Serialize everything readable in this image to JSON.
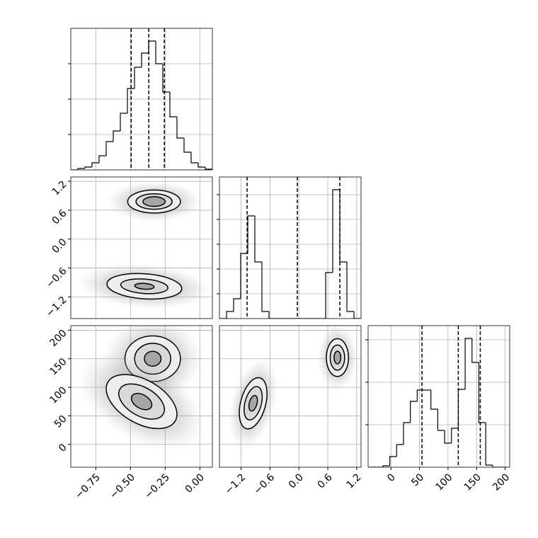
{
  "chart_data": {
    "type": "corner",
    "grid": true,
    "params": [
      {
        "lim": [
          -0.93,
          0.09
        ],
        "ticks": [
          {
            "value": -0.75,
            "label": "−0.75"
          },
          {
            "value": -0.5,
            "label": "−0.50"
          },
          {
            "value": -0.25,
            "label": "−0.25"
          },
          {
            "value": 0,
            "label": "0.00"
          }
        ],
        "bins": [
          -0.93,
          -0.879,
          -0.828,
          -0.777,
          -0.726,
          -0.675,
          -0.624,
          -0.573,
          -0.522,
          -0.471,
          -0.42,
          -0.369,
          -0.318,
          -0.267,
          -0.216,
          -0.165,
          -0.114,
          -0.063,
          -0.012,
          0.039,
          0.09
        ],
        "counts": [
          0,
          40,
          80,
          200,
          400,
          800,
          1100,
          1600,
          2300,
          2900,
          3300,
          3640,
          3000,
          2200,
          1500,
          900,
          500,
          200,
          80,
          20
        ],
        "count_lim": [
          0,
          4000
        ],
        "count_ticks": [
          1000,
          2000,
          3000
        ],
        "quantiles": [
          -0.495,
          -0.368,
          -0.256
        ]
      },
      {
        "lim": [
          -1.65,
          1.29
        ],
        "ticks": [
          {
            "value": -1.2,
            "label": "−1.2"
          },
          {
            "value": -0.6,
            "label": "−0.6"
          },
          {
            "value": 0,
            "label": "0.0"
          },
          0.6,
          1.2
        ],
        "bins": [
          -1.65,
          -1.503,
          -1.356,
          -1.209,
          -1.062,
          -0.915,
          -0.768,
          -0.621,
          -0.474,
          -0.327,
          -0.18,
          -0.033,
          0.114,
          0.261,
          0.408,
          0.555,
          0.702,
          0.849,
          0.996,
          1.143,
          1.29
        ],
        "counts": [
          0,
          200,
          560,
          1840,
          2900,
          1600,
          200,
          0,
          0,
          0,
          0,
          0,
          0,
          0,
          0,
          1300,
          3640,
          1600,
          200,
          0
        ],
        "count_lim": [
          0,
          4000
        ],
        "count_ticks": [
          700,
          1400,
          2100,
          2800,
          3500
        ],
        "quantiles": [
          -1.076,
          -0.032,
          0.85
        ]
      },
      {
        "lim": [
          -40,
          208
        ],
        "ticks": [
          0,
          50,
          100,
          150,
          200
        ],
        "bins": [
          -38,
          -26,
          -14,
          -2,
          10,
          22,
          34,
          46,
          58,
          70,
          82,
          94,
          106,
          118,
          130,
          142,
          154,
          166,
          178,
          190,
          202
        ],
        "counts": [
          0,
          0,
          40,
          300,
          640,
          1260,
          1860,
          2180,
          2180,
          1640,
          1040,
          680,
          1100,
          2200,
          3640,
          2960,
          1260,
          60,
          0,
          0
        ],
        "count_lim": [
          0,
          4000
        ],
        "count_ticks": [
          1200,
          2400,
          3600
        ],
        "quantiles": [
          54.4,
          118,
          156.5
        ]
      }
    ],
    "level_fills": [
      "#f3f3f3",
      "#d6d6d6",
      "#9c9c9c"
    ],
    "cloud_color": "#b0b0b0",
    "pairs": [
      {
        "x": 0,
        "y": 1,
        "blobs": [
          {
            "center": [
              -0.33,
              0.78
            ],
            "angle": 0,
            "levels": [
              [
                0.19,
                0.24
              ],
              [
                0.13,
                0.16
              ],
              [
                0.08,
                0.1
              ]
            ]
          },
          {
            "center": [
              -0.4,
              -0.98
            ],
            "angle": 4,
            "levels": [
              [
                0.27,
                0.26
              ],
              [
                0.17,
                0.15
              ],
              [
                0.07,
                0.06
              ]
            ]
          }
        ]
      },
      {
        "x": 0,
        "y": 2,
        "blobs": [
          {
            "center": [
              -0.34,
              150
            ],
            "angle": 0,
            "levels": [
              [
                0.2,
                40
              ],
              [
                0.13,
                27
              ],
              [
                0.06,
                13
              ]
            ]
          },
          {
            "center": [
              -0.42,
              75
            ],
            "angle": 30,
            "levels": [
              [
                0.28,
                38
              ],
              [
                0.18,
                25
              ],
              [
                0.08,
                12
              ]
            ]
          }
        ]
      },
      {
        "x": 1,
        "y": 2,
        "blobs": [
          {
            "center": [
              0.8,
              152
            ],
            "angle": 0,
            "levels": [
              [
                0.23,
                33
              ],
              [
                0.15,
                22
              ],
              [
                0.07,
                11
              ]
            ]
          },
          {
            "center": [
              -0.95,
              72
            ],
            "angle": 15,
            "levels": [
              [
                0.26,
                46
              ],
              [
                0.17,
                30
              ],
              [
                0.08,
                14
              ]
            ]
          }
        ]
      }
    ]
  }
}
